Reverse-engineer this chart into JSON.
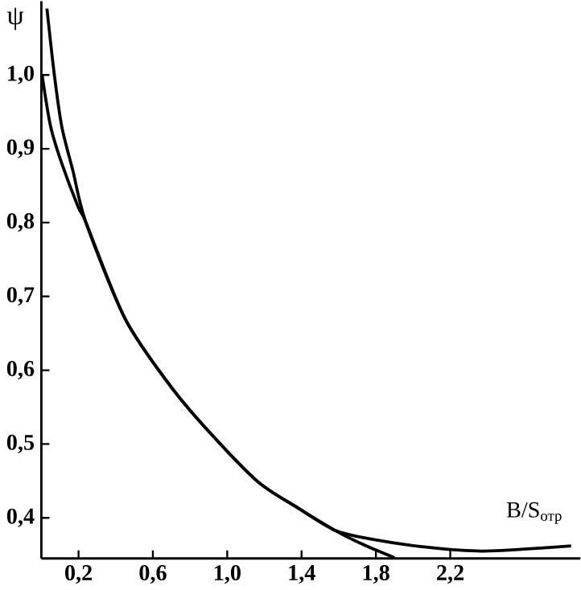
{
  "chart_data": {
    "type": "line",
    "ylabel": "ψ",
    "xlabel": "В/S$_{отр}$",
    "xlim": [
      0,
      2.9
    ],
    "ylim": [
      0.345,
      1.1
    ],
    "xticks": [
      {
        "value": 0.2,
        "label": "0,2"
      },
      {
        "value": 0.6,
        "label": "0,6"
      },
      {
        "value": 1.0,
        "label": "1,0"
      },
      {
        "value": 1.4,
        "label": "1,4"
      },
      {
        "value": 1.8,
        "label": "1,8"
      },
      {
        "value": 2.2,
        "label": "2,2"
      }
    ],
    "yticks": [
      {
        "value": 0.4,
        "label": "0,4"
      },
      {
        "value": 0.5,
        "label": "0,5"
      },
      {
        "value": 0.6,
        "label": "0,6"
      },
      {
        "value": 0.7,
        "label": "0,7"
      },
      {
        "value": 0.8,
        "label": "0,8"
      },
      {
        "value": 0.9,
        "label": "0,9"
      },
      {
        "value": 1.0,
        "label": "1,0"
      }
    ],
    "grid": false,
    "series": [
      {
        "color": "#000000",
        "x": [
          0.03,
          0.07,
          0.11,
          0.17,
          0.24,
          0.45,
          0.69,
          0.89,
          1.16,
          1.37,
          1.58,
          1.73,
          1.9
        ],
        "values": [
          1.09,
          1.0,
          0.93,
          0.87,
          0.8,
          0.67,
          0.58,
          0.52,
          0.45,
          0.415,
          0.383,
          0.364,
          0.346
        ]
      },
      {
        "color": "#000000",
        "x": [
          0.004,
          0.05,
          0.11,
          0.2,
          0.24,
          0.45,
          0.69,
          0.89,
          1.16,
          1.37,
          1.58,
          1.78,
          2.08,
          2.38,
          2.85
        ],
        "values": [
          1.0,
          0.93,
          0.88,
          0.82,
          0.8,
          0.67,
          0.58,
          0.52,
          0.45,
          0.415,
          0.383,
          0.371,
          0.36,
          0.355,
          0.362
        ]
      }
    ]
  }
}
